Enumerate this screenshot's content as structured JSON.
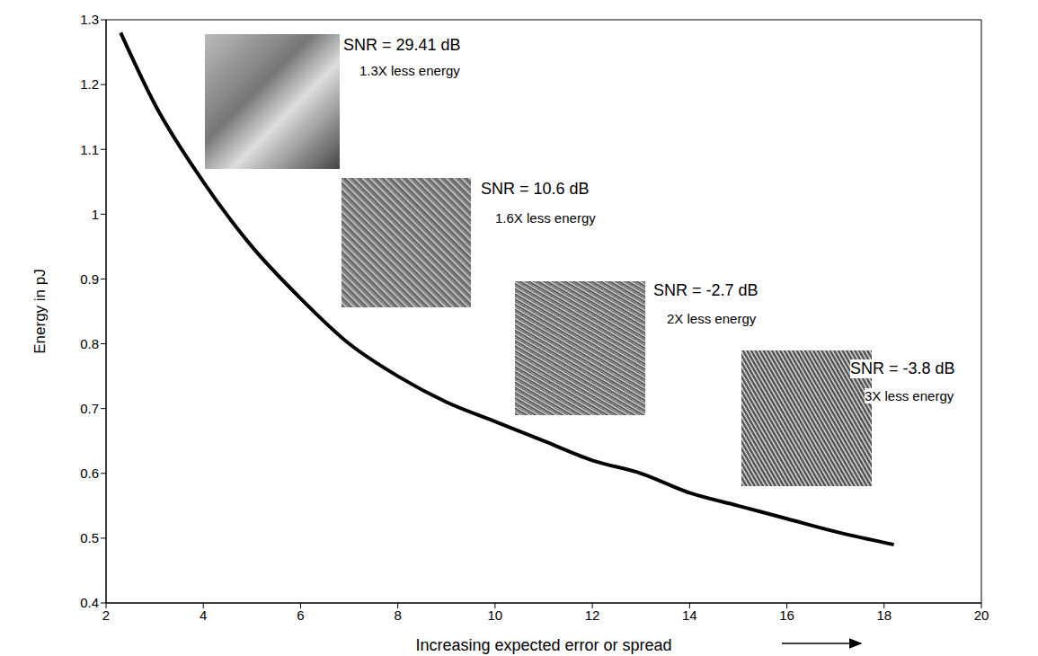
{
  "chart_data": {
    "type": "line",
    "x_label": "Increasing expected error or spread",
    "y_label": "Energy in pJ",
    "x": [
      2.3,
      3,
      4,
      5,
      6,
      7,
      8,
      9,
      10,
      11,
      12,
      13,
      14,
      15,
      16,
      17,
      18.2
    ],
    "values": [
      1.28,
      1.17,
      1.05,
      0.95,
      0.87,
      0.8,
      0.75,
      0.71,
      0.68,
      0.65,
      0.62,
      0.6,
      0.57,
      0.55,
      0.53,
      0.51,
      0.49
    ],
    "color": "#000000",
    "xlim": [
      2,
      20
    ],
    "xticks": [
      2,
      4,
      6,
      8,
      10,
      12,
      14,
      16,
      18,
      20
    ],
    "ylim": [
      0.4,
      1.3
    ],
    "yticks": [
      0.4,
      0.5,
      0.6,
      0.7,
      0.8,
      0.9,
      1,
      1.1,
      1.2,
      1.3
    ],
    "grid": false,
    "annotations": [
      {
        "label": "SNR = 29.41 dB",
        "sublabel": "1.3X less energy"
      },
      {
        "label": "SNR = 10.6 dB",
        "sublabel": "1.6X less energy"
      },
      {
        "label": "SNR = -2.7 dB",
        "sublabel": "2X less energy"
      },
      {
        "label": "SNR = -3.8 dB",
        "sublabel": "3X less energy"
      }
    ]
  }
}
